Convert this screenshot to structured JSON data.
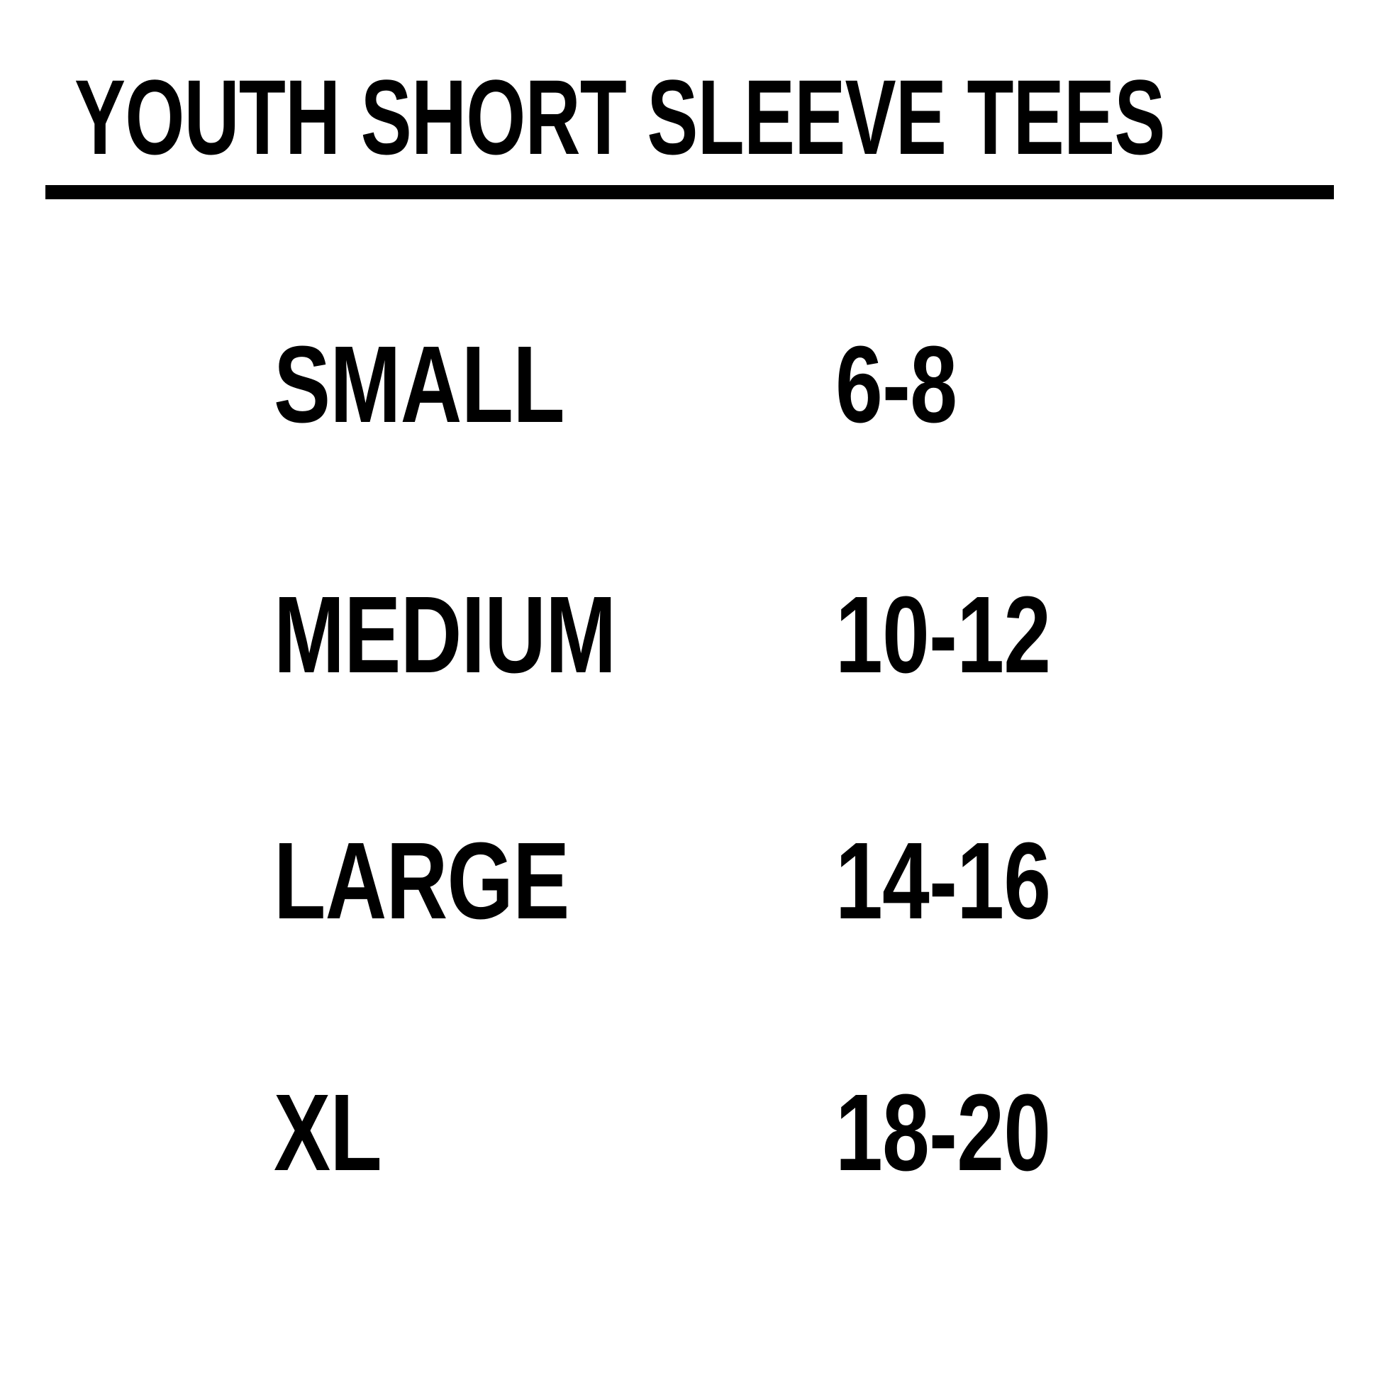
{
  "page": {
    "background_color": "#ffffff",
    "text_color": "#000000"
  },
  "header": {
    "title": "YOUTH SHORT SLEEVE TEES"
  },
  "size_chart": {
    "columns": [
      "size",
      "age_range"
    ],
    "rows": [
      {
        "size": "SMALL",
        "range": "6-8"
      },
      {
        "size": "MEDIUM",
        "range": "10-12"
      },
      {
        "size": "LARGE",
        "range": "14-16"
      },
      {
        "size": "XL",
        "range": "18-20"
      }
    ]
  }
}
